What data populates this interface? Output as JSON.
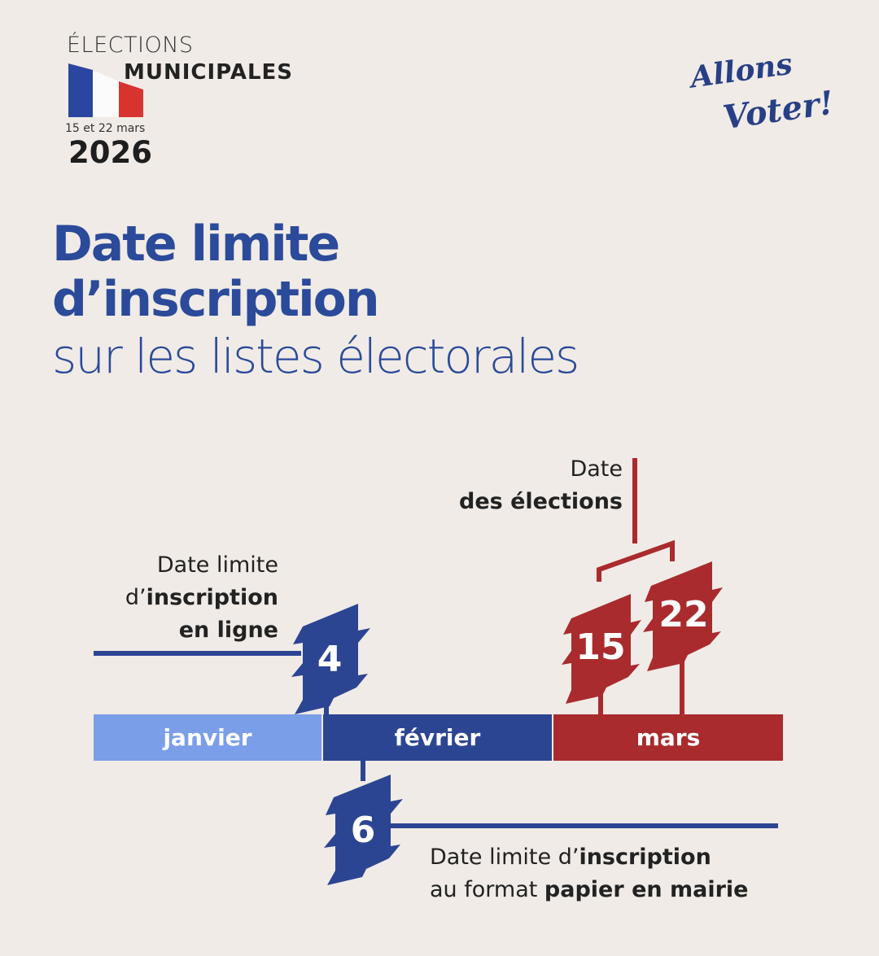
{
  "header": {
    "elections": "ÉLECTIONS",
    "municipales": "MUNICIPALES",
    "dates": "15 et 22 mars",
    "year": "2026",
    "logo_line1": "Allons",
    "logo_line2": "Voter!"
  },
  "title": {
    "line1": "Date limite",
    "line2": "d’inscription",
    "line3": "sur les listes électorales"
  },
  "timeline": {
    "months": [
      {
        "label": "janvier",
        "color": "#7b9ee8"
      },
      {
        "label": "février",
        "color": "#2c4593"
      },
      {
        "label": "mars",
        "color": "#a92b2e"
      }
    ],
    "online": {
      "day": "4",
      "l1": "Date limite",
      "l2a": "d’",
      "l2b": "inscription",
      "l3": "en ligne"
    },
    "paper": {
      "day": "6",
      "l1a": "Date limite d’",
      "l1b": "inscription",
      "l2a": "au format ",
      "l2b": "papier en mairie"
    },
    "elections": {
      "days": [
        "15",
        "22"
      ],
      "l1": "Date",
      "l2": "des élections"
    }
  },
  "colors": {
    "blue": "#2c4593",
    "red": "#a92b2e",
    "light_blue": "#7b9ee8",
    "background": "#f0ebe6"
  }
}
